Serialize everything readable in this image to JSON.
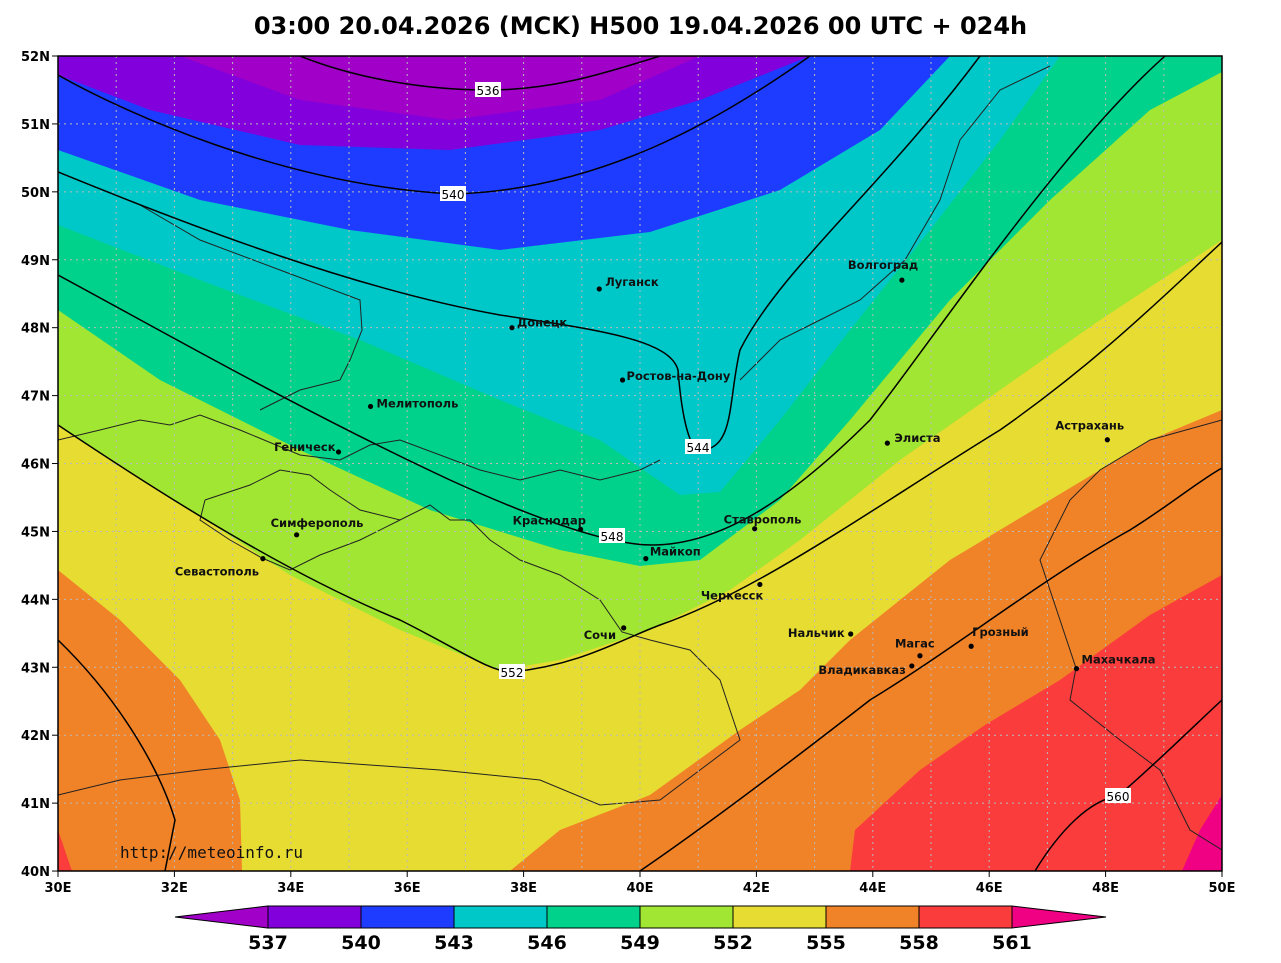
{
  "title": "03:00 20.04.2026 (MCK) H500  19.04.2026 00 UTC + 024h",
  "watermark": "http://meteoinfo.ru",
  "axes": {
    "lat_labels": [
      "52N",
      "51N",
      "50N",
      "49N",
      "48N",
      "47N",
      "46N",
      "45N",
      "44N",
      "43N",
      "42N",
      "41N",
      "40N"
    ],
    "lon_labels": [
      "30E",
      "32E",
      "34E",
      "36E",
      "38E",
      "40E",
      "42E",
      "44E",
      "46E",
      "48E",
      "50E"
    ]
  },
  "colors": {
    "below_537": "#a000c8",
    "537_540": "#8200dc",
    "540_543": "#1e3cff",
    "543_546": "#00c8c8",
    "546_549": "#00d28c",
    "549_552": "#a0e632",
    "552_555": "#e6dc32",
    "555_558": "#f08228",
    "558_561": "#fa3c3c",
    "above_561": "#f00082"
  },
  "contour_labels": [
    "536",
    "540",
    "544",
    "548",
    "552",
    "560"
  ],
  "colorbar": {
    "ticks": [
      "537",
      "540",
      "543",
      "546",
      "549",
      "552",
      "555",
      "558",
      "561"
    ]
  },
  "cities": [
    {
      "name": "Луганск",
      "lon": 39.3,
      "lat": 48.57
    },
    {
      "name": "Донецк",
      "lon": 37.8,
      "lat": 48.0
    },
    {
      "name": "Ростов-на-Дону",
      "lon": 39.7,
      "lat": 47.23
    },
    {
      "name": "Мелитополь",
      "lon": 35.37,
      "lat": 46.84
    },
    {
      "name": "Геническ",
      "lon": 34.82,
      "lat": 46.17
    },
    {
      "name": "Волгоград",
      "lon": 44.5,
      "lat": 48.7
    },
    {
      "name": "Элиста",
      "lon": 44.25,
      "lat": 46.3
    },
    {
      "name": "Астрахань",
      "lon": 48.03,
      "lat": 46.35
    },
    {
      "name": "Краснодар",
      "lon": 38.98,
      "lat": 45.03
    },
    {
      "name": "Майкоп",
      "lon": 40.1,
      "lat": 44.6
    },
    {
      "name": "Ставрополь",
      "lon": 41.97,
      "lat": 45.04
    },
    {
      "name": "Черкесск",
      "lon": 42.06,
      "lat": 44.22
    },
    {
      "name": "Симферополь",
      "lon": 34.1,
      "lat": 44.95
    },
    {
      "name": "Севастополь",
      "lon": 33.52,
      "lat": 44.6
    },
    {
      "name": "Сочи",
      "lon": 39.72,
      "lat": 43.58
    },
    {
      "name": "Нальчик",
      "lon": 43.62,
      "lat": 43.49
    },
    {
      "name": "Магас",
      "lon": 44.81,
      "lat": 43.17
    },
    {
      "name": "Владикавказ",
      "lon": 44.67,
      "lat": 43.02
    },
    {
      "name": "Грозный",
      "lon": 45.69,
      "lat": 43.31
    },
    {
      "name": "Махачкала",
      "lon": 47.5,
      "lat": 42.98
    }
  ]
}
